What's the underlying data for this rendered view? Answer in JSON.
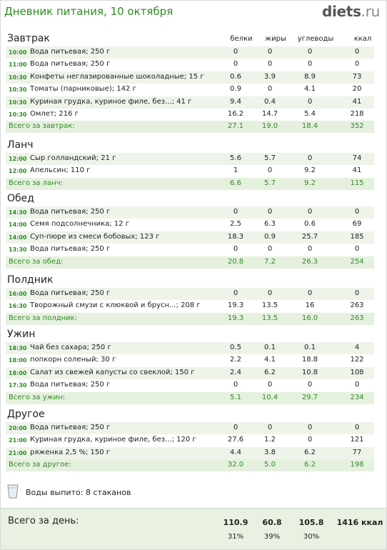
{
  "header": {
    "title": "Дневник питания, 10 октября",
    "logo_main": "diets",
    "logo_tld": ".ru"
  },
  "columns": {
    "protein": "белки",
    "fat": "жиры",
    "carbs": "углеводы",
    "kcal": "ккал"
  },
  "meals": [
    {
      "title": "Завтрак",
      "items": [
        {
          "time": "10:00",
          "food": "Вода питьевая; 250 г",
          "p": "0",
          "f": "0",
          "c": "0",
          "k": "0"
        },
        {
          "time": "11:00",
          "food": "Вода питьевая; 250 г",
          "p": "0",
          "f": "0",
          "c": "0",
          "k": "0"
        },
        {
          "time": "10:30",
          "food": "Конфеты неглазированные шоколадные; 15 г",
          "p": "0.6",
          "f": "3.9",
          "c": "8.9",
          "k": "73"
        },
        {
          "time": "10:30",
          "food": "Томаты (парниковые); 142 г",
          "p": "0.9",
          "f": "0",
          "c": "4.1",
          "k": "20"
        },
        {
          "time": "10:30",
          "food": "Куриная грудка, куриное филе, без...; 41 г",
          "p": "9.4",
          "f": "0.4",
          "c": "0",
          "k": "41"
        },
        {
          "time": "10:30",
          "food": "Омлет; 216 г",
          "p": "16.2",
          "f": "14.7",
          "c": "5.4",
          "k": "218"
        }
      ],
      "total": {
        "label": "Всего за завтрак:",
        "p": "27.1",
        "f": "19.0",
        "c": "18.4",
        "k": "352"
      }
    },
    {
      "title": "Ланч",
      "items": [
        {
          "time": "12:00",
          "food": "Сыр голландский; 21 г",
          "p": "5.6",
          "f": "5.7",
          "c": "0",
          "k": "74"
        },
        {
          "time": "12:00",
          "food": "Апельсин; 110 г",
          "p": "1",
          "f": "0",
          "c": "9.2",
          "k": "41"
        }
      ],
      "total": {
        "label": "Всего за ланч:",
        "p": "6.6",
        "f": "5.7",
        "c": "9.2",
        "k": "115"
      }
    },
    {
      "title": "Обед",
      "items": [
        {
          "time": "14:30",
          "food": "Вода питьевая; 250 г",
          "p": "0",
          "f": "0",
          "c": "0",
          "k": "0"
        },
        {
          "time": "14:00",
          "food": "Семя подсолнечника; 12 г",
          "p": "2.5",
          "f": "6.3",
          "c": "0.6",
          "k": "69"
        },
        {
          "time": "14:00",
          "food": "Суп-пюре из смеси бобовых; 123 г",
          "p": "18.3",
          "f": "0.9",
          "c": "25.7",
          "k": "185"
        },
        {
          "time": "13:30",
          "food": "Вода питьевая; 250 г",
          "p": "0",
          "f": "0",
          "c": "0",
          "k": "0"
        }
      ],
      "total": {
        "label": "Всего за обед:",
        "p": "20.8",
        "f": "7.2",
        "c": "26.3",
        "k": "254"
      }
    },
    {
      "title": "Полдник",
      "items": [
        {
          "time": "16:00",
          "food": "Вода питьевая; 250 г",
          "p": "0",
          "f": "0",
          "c": "0",
          "k": "0"
        },
        {
          "time": "16:30",
          "food": "Творожный смузи с клюквой и брусн...; 208 г",
          "p": "19.3",
          "f": "13.5",
          "c": "16",
          "k": "263"
        }
      ],
      "total": {
        "label": "Всего за полдник:",
        "p": "19.3",
        "f": "13.5",
        "c": "16.0",
        "k": "263"
      }
    },
    {
      "title": "Ужин",
      "items": [
        {
          "time": "18:30",
          "food": "Чай без сахара; 250 г",
          "p": "0.5",
          "f": "0.1",
          "c": "0.1",
          "k": "4"
        },
        {
          "time": "18:00",
          "food": "попкорн соленый; 30 г",
          "p": "2.2",
          "f": "4.1",
          "c": "18.8",
          "k": "122"
        },
        {
          "time": "18:00",
          "food": "Салат из свежей капусты со свеклой; 150 г",
          "p": "2.4",
          "f": "6.2",
          "c": "10.8",
          "k": "108"
        },
        {
          "time": "17:30",
          "food": "Вода питьевая; 250 г",
          "p": "0",
          "f": "0",
          "c": "0",
          "k": "0"
        }
      ],
      "total": {
        "label": "Всего за ужин:",
        "p": "5.1",
        "f": "10.4",
        "c": "29.7",
        "k": "234"
      }
    },
    {
      "title": "Другое",
      "items": [
        {
          "time": "20:00",
          "food": "Вода питьевая; 250 г",
          "p": "0",
          "f": "0",
          "c": "0",
          "k": "0"
        },
        {
          "time": "21:00",
          "food": "Куриная грудка, куриное филе, без...; 120 г",
          "p": "27.6",
          "f": "1.2",
          "c": "0",
          "k": "121"
        },
        {
          "time": "21:00",
          "food": "ряженка 2,5 %; 150 г",
          "p": "4.4",
          "f": "3.8",
          "c": "6.2",
          "k": "77"
        }
      ],
      "total": {
        "label": "Всего за другое:",
        "p": "32.0",
        "f": "5.0",
        "c": "6.2",
        "k": "198"
      }
    }
  ],
  "water": {
    "icon": "glass-icon",
    "text": "Воды выпито: 8 стаканов"
  },
  "day_total": {
    "label": "Всего за день:",
    "p": "110.9",
    "f": "60.8",
    "c": "105.8",
    "k": "1416 ккал",
    "p_pct": "31%",
    "f_pct": "39%",
    "c_pct": "30%"
  },
  "colors": {
    "accent": "#2e8b22",
    "row_alt": "#eef4ea",
    "total_bg": "#e6f0df",
    "day_bg": "#e8f1e2"
  }
}
